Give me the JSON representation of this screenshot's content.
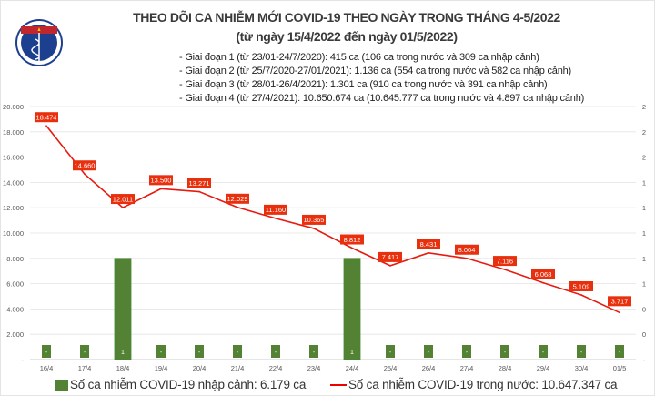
{
  "header": {
    "title": "THEO DÕI CA NHIỄM MỚI COVID-19 THEO NGÀY TRONG THÁNG 4-5/2022",
    "subtitle": "(từ ngày 15/4/2022 đến ngày 01/5/2022)",
    "notes": [
      "- Giai đoạn 1 (từ 23/01-24/7/2020): 415 ca (106 ca trong nước và 309 ca nhập cảnh)",
      "- Giai đoạn 2 (từ 25/7/2020-27/01/2021): 1.136 ca (554 ca trong nước và 582 ca nhập cảnh)",
      "- Giai đoạn 3 (từ 28/01-26/4/2021): 1.301 ca (910 ca trong nước và 391 ca nhập cảnh)",
      "- Giai đoạn 4 (từ 27/4/2021): 10.650.674 ca (10.645.777 ca trong nước và 4.897 ca nhập cảnh)"
    ],
    "logo": {
      "top_text": "BỘ Y TẾ",
      "bottom_text": "MINISTRY OF HEALTH"
    }
  },
  "chart_data": {
    "type": "bar+line",
    "categories": [
      "16/4",
      "17/4",
      "18/4",
      "19/4",
      "20/4",
      "21/4",
      "22/4",
      "23/4",
      "24/4",
      "25/4",
      "26/4",
      "27/4",
      "28/4",
      "29/4",
      "30/4",
      "01/5"
    ],
    "series": [
      {
        "name": "Số ca nhiễm COVID-19 nhập cảnh: 6.179 ca",
        "type": "bar",
        "axis": "right",
        "color": "#548235",
        "values": [
          0,
          0,
          1,
          0,
          0,
          0,
          0,
          0,
          1,
          0,
          0,
          0,
          0,
          0,
          0,
          0
        ],
        "labels": [
          "-",
          "-",
          "1",
          "-",
          "-",
          "-",
          "-",
          "-",
          "1",
          "-",
          "-",
          "-",
          "-",
          "-",
          "-",
          "-"
        ]
      },
      {
        "name": "Số ca nhiễm COVID-19 trong nước: 10.647.347 ca",
        "type": "line",
        "axis": "left",
        "color": "#e8190e",
        "values": [
          18474,
          14660,
          12011,
          13500,
          13271,
          12029,
          11160,
          10365,
          8812,
          7417,
          8431,
          8004,
          7116,
          6068,
          5109,
          3717
        ],
        "labels": [
          "18.474",
          "14.660",
          "12.011",
          "13.500",
          "13.271",
          "12.029",
          "11.160",
          "10.365",
          "8.812",
          "7.417",
          "8.431",
          "8.004",
          "7.116",
          "6.068",
          "5.109",
          "3.717"
        ]
      }
    ],
    "left_axis": {
      "ylim": [
        0,
        20000
      ],
      "ticks": [
        "-",
        "2.000",
        "4.000",
        "6.000",
        "8.000",
        "10.000",
        "12.000",
        "14.000",
        "16.000",
        "18.000",
        "20.000"
      ]
    },
    "right_axis": {
      "ylim": [
        0,
        2.5
      ],
      "ticks": [
        "-",
        "0",
        "0",
        "1",
        "1",
        "1",
        "1",
        "1",
        "2",
        "2",
        "2"
      ]
    },
    "grid": true,
    "legend": "bottom"
  }
}
